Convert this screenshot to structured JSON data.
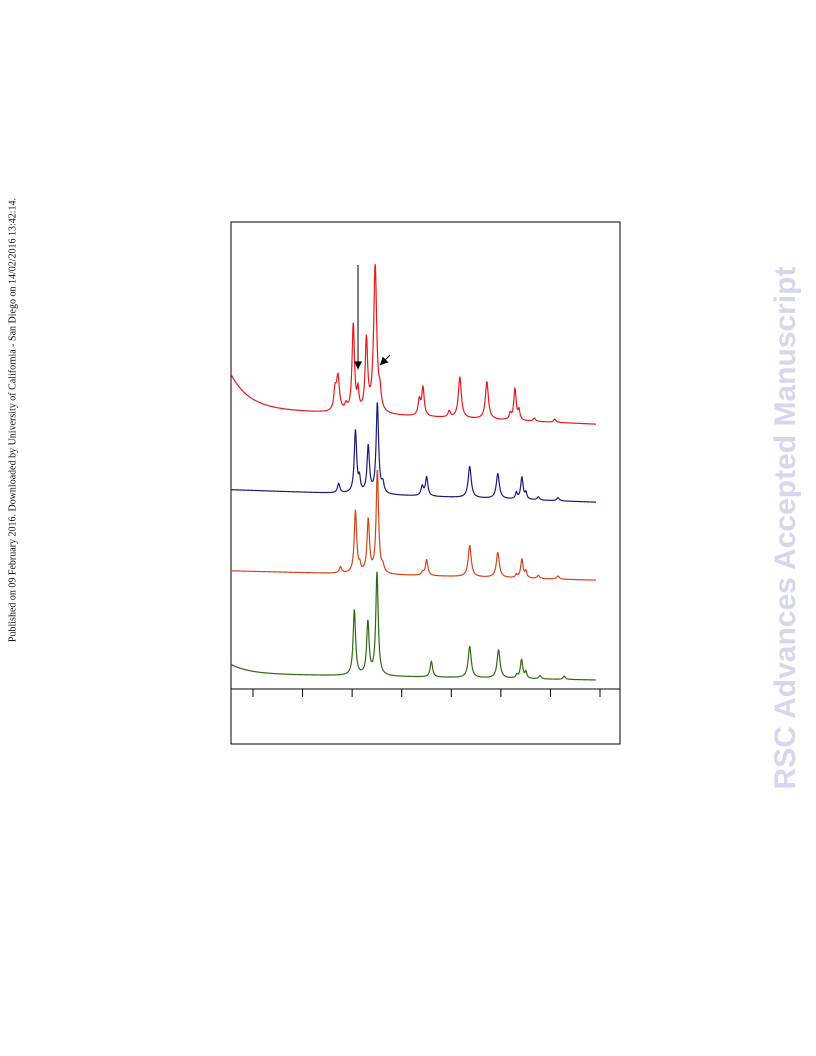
{
  "side_note": "Published on 09 February 2016. Downloaded by University of California - San Diego on 14/02/2016 13:42:14.",
  "watermark": {
    "text": "RSC Advances Accepted Manuscript",
    "color": "#d6d6ec"
  },
  "chart_data": {
    "type": "line",
    "title": "",
    "xlabel": "",
    "ylabel": "",
    "legend": "none",
    "grid": false,
    "x_ticks_count": 8,
    "series": [
      {
        "color": "#e8181c",
        "baseline": 0.0,
        "baseline_end": -0.05,
        "tail": 0.11,
        "peaks": [
          {
            "x": 0.285,
            "h": 0.06,
            "w": 0.004
          },
          {
            "x": 0.293,
            "h": 0.11,
            "w": 0.005
          },
          {
            "x": 0.315,
            "h": 0.02,
            "w": 0.004
          },
          {
            "x": 0.335,
            "h": 0.28,
            "w": 0.004
          },
          {
            "x": 0.348,
            "h": 0.06,
            "w": 0.003
          },
          {
            "x": 0.371,
            "h": 0.23,
            "w": 0.004
          },
          {
            "x": 0.395,
            "h": 0.47,
            "w": 0.005
          },
          {
            "x": 0.408,
            "h": 0.05,
            "w": 0.004
          },
          {
            "x": 0.516,
            "h": 0.05,
            "w": 0.004
          },
          {
            "x": 0.526,
            "h": 0.09,
            "w": 0.004
          },
          {
            "x": 0.598,
            "h": 0.02,
            "w": 0.004
          },
          {
            "x": 0.627,
            "h": 0.13,
            "w": 0.005
          },
          {
            "x": 0.701,
            "h": 0.12,
            "w": 0.005
          },
          {
            "x": 0.765,
            "h": 0.02,
            "w": 0.003
          },
          {
            "x": 0.778,
            "h": 0.1,
            "w": 0.004
          },
          {
            "x": 0.789,
            "h": 0.03,
            "w": 0.003
          },
          {
            "x": 0.831,
            "h": 0.01,
            "w": 0.004
          },
          {
            "x": 0.887,
            "h": 0.01,
            "w": 0.004
          }
        ]
      },
      {
        "color": "#1a1a7a",
        "baseline": -0.26,
        "baseline_end": -0.3,
        "tail": 0.0,
        "peaks": [
          {
            "x": 0.295,
            "h": 0.03,
            "w": 0.004
          },
          {
            "x": 0.341,
            "h": 0.2,
            "w": 0.004
          },
          {
            "x": 0.352,
            "h": 0.04,
            "w": 0.003
          },
          {
            "x": 0.376,
            "h": 0.15,
            "w": 0.004
          },
          {
            "x": 0.401,
            "h": 0.29,
            "w": 0.004
          },
          {
            "x": 0.416,
            "h": 0.03,
            "w": 0.004
          },
          {
            "x": 0.524,
            "h": 0.03,
            "w": 0.004
          },
          {
            "x": 0.536,
            "h": 0.06,
            "w": 0.004
          },
          {
            "x": 0.654,
            "h": 0.1,
            "w": 0.005
          },
          {
            "x": 0.731,
            "h": 0.08,
            "w": 0.005
          },
          {
            "x": 0.782,
            "h": 0.02,
            "w": 0.003
          },
          {
            "x": 0.797,
            "h": 0.07,
            "w": 0.004
          },
          {
            "x": 0.808,
            "h": 0.02,
            "w": 0.003
          },
          {
            "x": 0.842,
            "h": 0.01,
            "w": 0.004
          },
          {
            "x": 0.896,
            "h": 0.01,
            "w": 0.004
          }
        ]
      },
      {
        "color": "#d4431a",
        "baseline": -0.52,
        "baseline_end": -0.55,
        "tail": 0.0,
        "peaks": [
          {
            "x": 0.3,
            "h": 0.02,
            "w": 0.004
          },
          {
            "x": 0.341,
            "h": 0.2,
            "w": 0.004
          },
          {
            "x": 0.353,
            "h": 0.02,
            "w": 0.003
          },
          {
            "x": 0.376,
            "h": 0.17,
            "w": 0.004
          },
          {
            "x": 0.401,
            "h": 0.33,
            "w": 0.004
          },
          {
            "x": 0.416,
            "h": 0.02,
            "w": 0.004
          },
          {
            "x": 0.525,
            "h": 0.01,
            "w": 0.004
          },
          {
            "x": 0.536,
            "h": 0.05,
            "w": 0.004
          },
          {
            "x": 0.654,
            "h": 0.1,
            "w": 0.005
          },
          {
            "x": 0.731,
            "h": 0.08,
            "w": 0.005
          },
          {
            "x": 0.782,
            "h": 0.01,
            "w": 0.003
          },
          {
            "x": 0.797,
            "h": 0.06,
            "w": 0.004
          },
          {
            "x": 0.808,
            "h": 0.02,
            "w": 0.003
          },
          {
            "x": 0.842,
            "h": 0.01,
            "w": 0.004
          },
          {
            "x": 0.896,
            "h": 0.01,
            "w": 0.004
          }
        ]
      },
      {
        "color": "#2e6a12",
        "baseline": -0.85,
        "baseline_end": -0.87,
        "tail": 0.03,
        "peaks": [
          {
            "x": 0.338,
            "h": 0.21,
            "w": 0.004
          },
          {
            "x": 0.375,
            "h": 0.17,
            "w": 0.004
          },
          {
            "x": 0.4,
            "h": 0.33,
            "w": 0.004
          },
          {
            "x": 0.549,
            "h": 0.05,
            "w": 0.004
          },
          {
            "x": 0.654,
            "h": 0.1,
            "w": 0.005
          },
          {
            "x": 0.733,
            "h": 0.09,
            "w": 0.005
          },
          {
            "x": 0.783,
            "h": 0.01,
            "w": 0.003
          },
          {
            "x": 0.796,
            "h": 0.06,
            "w": 0.004
          },
          {
            "x": 0.808,
            "h": 0.02,
            "w": 0.003
          },
          {
            "x": 0.847,
            "h": 0.01,
            "w": 0.004
          },
          {
            "x": 0.913,
            "h": 0.01,
            "w": 0.004
          }
        ]
      }
    ],
    "arrows": [
      {
        "target": {
          "series": 0,
          "x": 0.348
        },
        "direction": "down"
      },
      {
        "target": {
          "series": 0,
          "x": 0.408
        },
        "direction": "down-left"
      }
    ]
  }
}
